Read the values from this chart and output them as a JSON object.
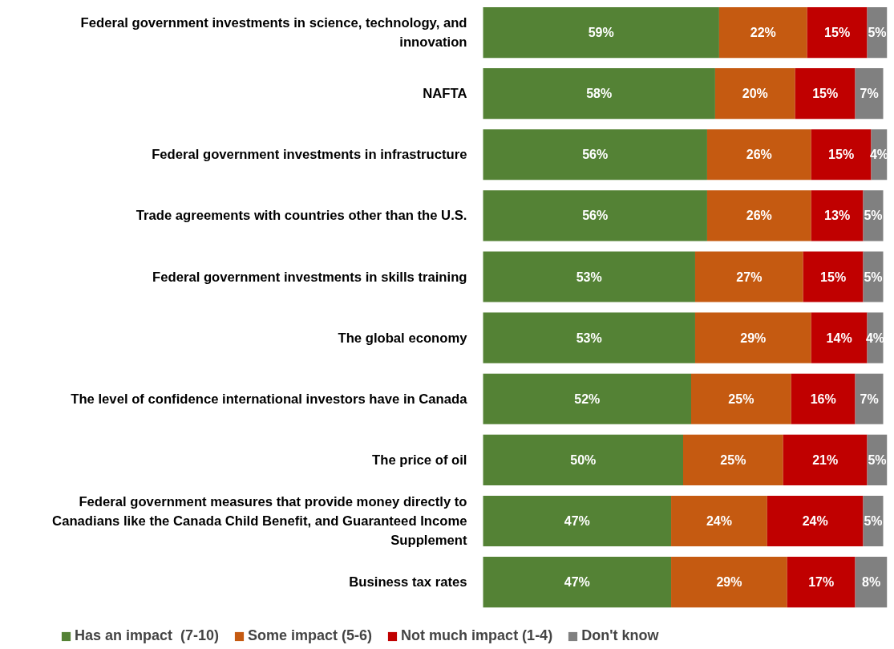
{
  "chart_data": {
    "type": "bar",
    "orientation": "horizontal",
    "stacked": true,
    "legend": "bottom",
    "grid": false,
    "categories": [
      "Federal government investments in science, technology, and innovation",
      "NAFTA",
      "Federal government investments in infrastructure",
      "Trade agreements with countries other than the U.S.",
      "Federal government investments in skills training",
      "The global economy",
      "The level of confidence international investors have in Canada",
      "The price of oil",
      "Federal government measures that provide money directly to Canadians like the Canada Child Benefit, and Guaranteed Income Supplement",
      "Business tax rates"
    ],
    "series": [
      {
        "name": "Has an impact  (7-10)",
        "color": "#548235",
        "values": [
          59,
          58,
          56,
          56,
          53,
          53,
          52,
          50,
          47,
          47
        ],
        "value_labels": [
          "59%",
          "58%",
          "56%",
          "56%",
          "53%",
          "53%",
          "52%",
          "50%",
          "47%",
          "47%"
        ]
      },
      {
        "name": "Some impact (5-6)",
        "color": "#c55a11",
        "values": [
          22,
          20,
          26,
          26,
          27,
          29,
          25,
          25,
          24,
          29
        ],
        "value_labels": [
          "22%",
          "20%",
          "26%",
          "26%",
          "27%",
          "29%",
          "25%",
          "25%",
          "24%",
          "29%"
        ]
      },
      {
        "name": "Not much impact (1-4)",
        "color": "#c00000",
        "values": [
          15,
          15,
          15,
          13,
          15,
          14,
          16,
          21,
          24,
          17
        ],
        "value_labels": [
          "15%",
          "15%",
          "15%",
          "13%",
          "15%",
          "14%",
          "16%",
          "21%",
          "24%",
          "17%"
        ]
      },
      {
        "name": "Don't know",
        "color": "#808080",
        "values": [
          5,
          7,
          4,
          5,
          5,
          4,
          7,
          5,
          5,
          8
        ],
        "value_labels": [
          "5%",
          "7%",
          "4%",
          "5%",
          "5%",
          "4%",
          "7%",
          "5%",
          "5%",
          "8%"
        ]
      }
    ]
  }
}
